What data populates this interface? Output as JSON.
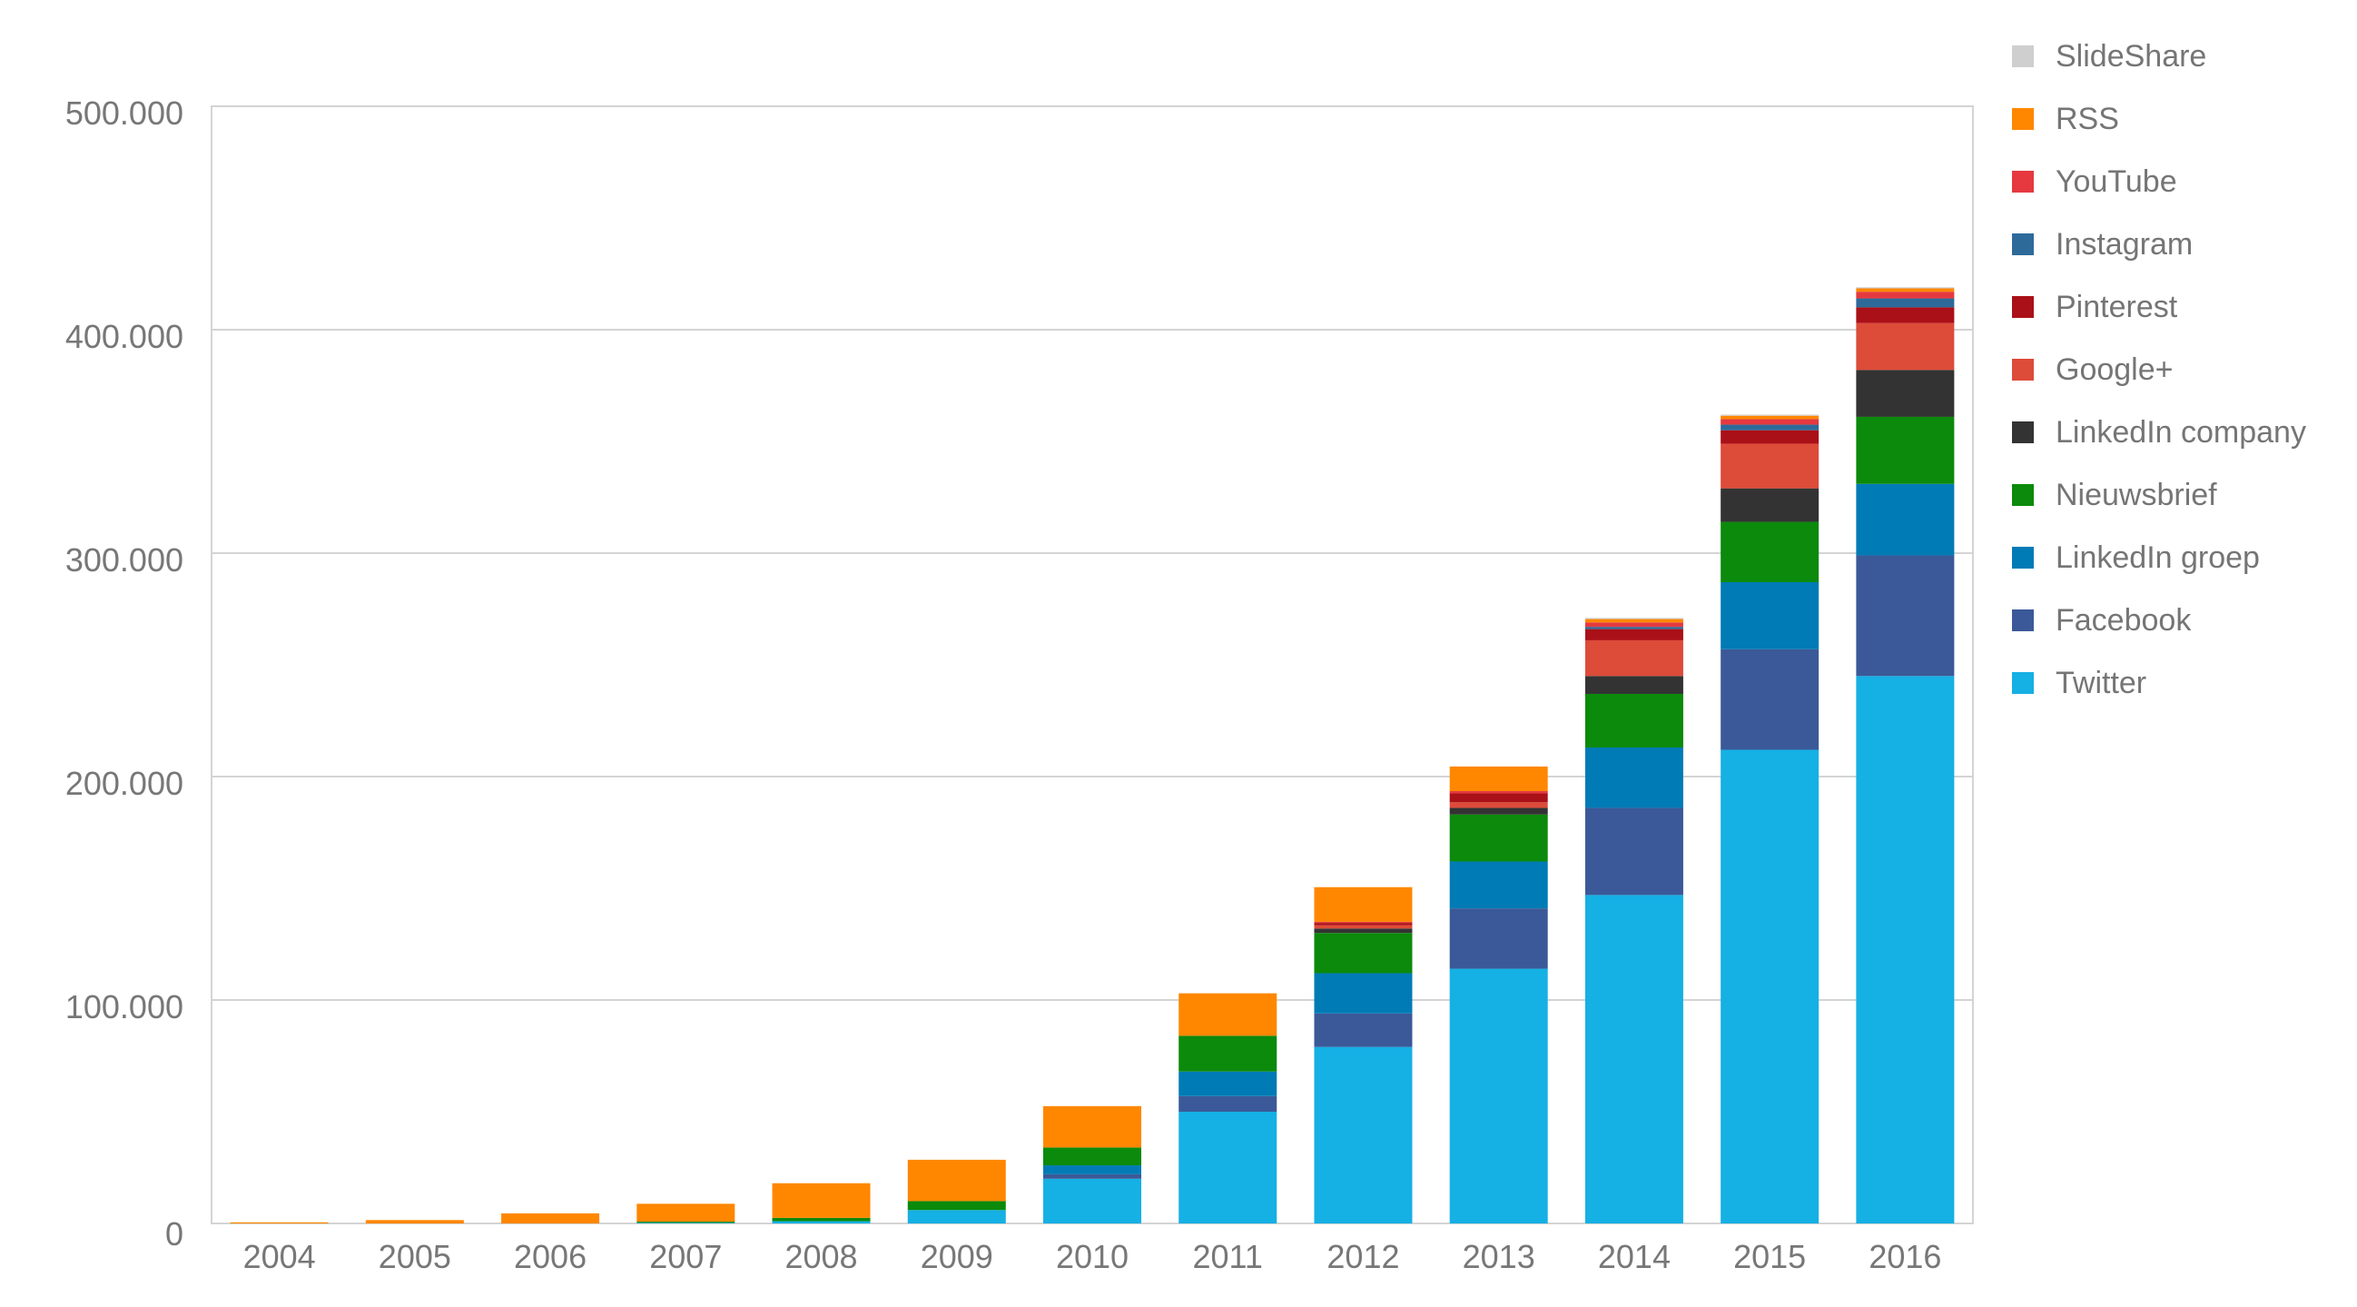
{
  "chart_data": {
    "type": "bar",
    "stacked": true,
    "title": "",
    "xlabel": "",
    "ylabel": "",
    "ylim": [
      0,
      500000
    ],
    "yticks": [
      0,
      100000,
      200000,
      300000,
      400000,
      500000
    ],
    "ytick_labels": [
      "0",
      "100.000",
      "200.000",
      "300.000",
      "400.000",
      "500.000"
    ],
    "grid": true,
    "legend_position": "right",
    "categories": [
      "2004",
      "2005",
      "2006",
      "2007",
      "2008",
      "2009",
      "2010",
      "2011",
      "2012",
      "2013",
      "2014",
      "2015",
      "2016"
    ],
    "series": [
      {
        "name": "Twitter",
        "color": "#15b0e4",
        "values": [
          0,
          0,
          0,
          300,
          1000,
          6000,
          20000,
          50000,
          79000,
          114000,
          147000,
          212000,
          245000
        ]
      },
      {
        "name": "Facebook",
        "color": "#3b5998",
        "values": [
          0,
          0,
          0,
          0,
          0,
          0,
          2000,
          7000,
          15000,
          27000,
          39000,
          45000,
          54000
        ]
      },
      {
        "name": "LinkedIn groep",
        "color": "#007bb5",
        "values": [
          0,
          0,
          0,
          0,
          0,
          0,
          4000,
          11000,
          18000,
          21000,
          27000,
          30000,
          32000
        ]
      },
      {
        "name": "Nieuwsbrief",
        "color": "#0b8a0b",
        "values": [
          0,
          0,
          0,
          500,
          1500,
          4000,
          8000,
          16000,
          18000,
          21000,
          24000,
          27000,
          30000
        ]
      },
      {
        "name": "LinkedIn company",
        "color": "#333333",
        "values": [
          0,
          0,
          0,
          0,
          0,
          0,
          0,
          0,
          2000,
          3000,
          8000,
          15000,
          21000
        ]
      },
      {
        "name": "Google+",
        "color": "#dd4b39",
        "values": [
          0,
          0,
          0,
          0,
          0,
          0,
          0,
          0,
          1500,
          2500,
          16000,
          20000,
          21000
        ]
      },
      {
        "name": "Pinterest",
        "color": "#aa1018",
        "values": [
          0,
          0,
          0,
          0,
          0,
          0,
          0,
          0,
          1000,
          4000,
          5000,
          6000,
          7000
        ]
      },
      {
        "name": "Instagram",
        "color": "#2d6a9a",
        "values": [
          0,
          0,
          0,
          0,
          0,
          0,
          0,
          0,
          0,
          0,
          1000,
          2500,
          4000
        ]
      },
      {
        "name": "YouTube",
        "color": "#e5393f",
        "values": [
          0,
          0,
          0,
          0,
          0,
          0,
          0,
          0,
          500,
          1000,
          2000,
          2500,
          3000
        ]
      },
      {
        "name": "RSS",
        "color": "#ff8700",
        "values": [
          500,
          1500,
          4500,
          8000,
          15500,
          18500,
          18500,
          19000,
          15500,
          11000,
          1500,
          1500,
          1500
        ]
      },
      {
        "name": "SlideShare",
        "color": "#cfcfcf",
        "values": [
          0,
          0,
          0,
          0,
          0,
          0,
          0,
          0,
          0,
          0,
          500,
          500,
          500
        ]
      }
    ],
    "legend_order": [
      "SlideShare",
      "RSS",
      "YouTube",
      "Instagram",
      "Pinterest",
      "Google+",
      "LinkedIn company",
      "Nieuwsbrief",
      "LinkedIn groep",
      "Facebook",
      "Twitter"
    ]
  }
}
